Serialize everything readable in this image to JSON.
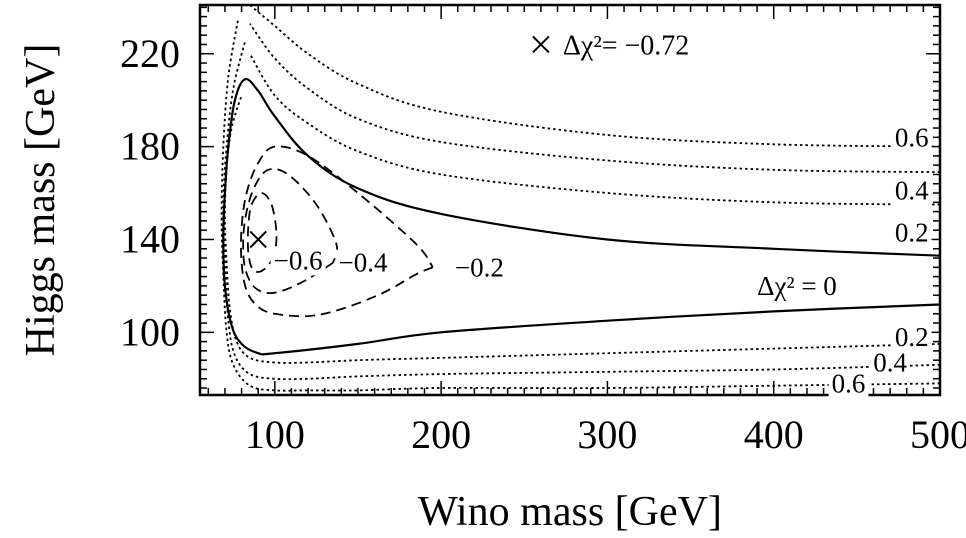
{
  "chart_data": {
    "type": "line",
    "xlabel": "Wino mass [GeV]",
    "ylabel": "Higgs mass [GeV]",
    "xlim": [
      55,
      500
    ],
    "ylim": [
      73,
      241
    ],
    "x_ticks": [
      100,
      200,
      300,
      400,
      500
    ],
    "y_ticks": [
      100,
      140,
      180,
      220
    ],
    "x_tick_labels": [
      "100",
      "200",
      "300",
      "400",
      "500"
    ],
    "y_tick_labels": [
      "100",
      "140",
      "180",
      "220"
    ],
    "colors": {
      "line": "#000000",
      "background": "#ffffff"
    },
    "contours": [
      {
        "label": "0.6",
        "style": "dotted",
        "points": [
          [
            500,
            180
          ],
          [
            400,
            181
          ],
          [
            300,
            185
          ],
          [
            200,
            195
          ],
          [
            150,
            207
          ],
          [
            120,
            220
          ],
          [
            100,
            232
          ],
          [
            85,
            241
          ]
        ]
      },
      {
        "label": "0.4",
        "style": "dotted",
        "points": [
          [
            500,
            169
          ],
          [
            400,
            170
          ],
          [
            300,
            174
          ],
          [
            200,
            182
          ],
          [
            150,
            192
          ],
          [
            120,
            205
          ],
          [
            100,
            218
          ],
          [
            85,
            233
          ]
        ]
      },
      {
        "label": "0.2",
        "style": "dotted",
        "points": [
          [
            500,
            155
          ],
          [
            400,
            156
          ],
          [
            300,
            160
          ],
          [
            200,
            168
          ],
          [
            150,
            178
          ],
          [
            120,
            190
          ],
          [
            100,
            202
          ],
          [
            85,
            220
          ]
        ]
      },
      {
        "label": "0",
        "style": "solid",
        "points": [
          [
            500,
            133
          ],
          [
            400,
            136
          ],
          [
            300,
            140
          ],
          [
            200,
            151
          ],
          [
            150,
            162
          ],
          [
            120,
            176
          ],
          [
            100,
            193
          ],
          [
            90,
            204
          ],
          [
            82,
            209
          ],
          [
            76,
            200
          ],
          [
            72,
            180
          ],
          [
            70,
            160
          ],
          [
            69,
            140
          ],
          [
            70,
            120
          ],
          [
            74,
            103
          ],
          [
            80,
            95
          ],
          [
            90,
            91
          ],
          [
            100,
            91
          ],
          [
            150,
            95
          ],
          [
            200,
            100
          ],
          [
            300,
            105
          ],
          [
            400,
            109
          ],
          [
            500,
            112
          ]
        ]
      },
      {
        "label": "0.2",
        "style": "dotted",
        "points": [
          [
            500,
            95
          ],
          [
            400,
            93
          ],
          [
            300,
            91
          ],
          [
            200,
            89
          ],
          [
            150,
            88
          ],
          [
            120,
            87
          ],
          [
            100,
            87
          ],
          [
            85,
            89
          ],
          [
            77,
            96
          ],
          [
            73,
            110
          ],
          [
            71,
            130
          ],
          [
            70,
            150
          ],
          [
            71,
            170
          ],
          [
            74,
            188
          ],
          [
            80,
            202
          ]
        ]
      },
      {
        "label": "0.4",
        "style": "dotted",
        "points": [
          [
            500,
            86
          ],
          [
            400,
            84
          ],
          [
            300,
            83
          ],
          [
            200,
            82
          ],
          [
            150,
            81
          ],
          [
            120,
            80
          ],
          [
            100,
            80
          ],
          [
            85,
            82
          ],
          [
            76,
            90
          ],
          [
            72,
            105
          ],
          [
            70,
            130
          ],
          [
            69,
            155
          ],
          [
            71,
            180
          ],
          [
            75,
            205
          ],
          [
            82,
            225
          ]
        ]
      },
      {
        "label": "0.6",
        "style": "dotted",
        "points": [
          [
            500,
            78
          ],
          [
            400,
            77
          ],
          [
            300,
            76
          ],
          [
            200,
            76
          ],
          [
            150,
            75
          ],
          [
            120,
            75
          ],
          [
            100,
            75
          ],
          [
            85,
            77
          ],
          [
            75,
            86
          ],
          [
            71,
            100
          ],
          [
            69,
            125
          ],
          [
            68,
            150
          ],
          [
            69,
            180
          ],
          [
            72,
            210
          ],
          [
            78,
            235
          ]
        ]
      },
      {
        "label": "−0.2",
        "style": "dashed",
        "points": [
          [
            195,
            128
          ],
          [
            185,
            125
          ],
          [
            165,
            117
          ],
          [
            140,
            110
          ],
          [
            120,
            107
          ],
          [
            100,
            108
          ],
          [
            90,
            111
          ],
          [
            83,
            118
          ],
          [
            80,
            130
          ],
          [
            80,
            145
          ],
          [
            83,
            160
          ],
          [
            90,
            173
          ],
          [
            100,
            180
          ],
          [
            120,
            176
          ],
          [
            150,
            160
          ],
          [
            185,
            138
          ],
          [
            195,
            128
          ]
        ]
      },
      {
        "label": "−0.4",
        "style": "dashed",
        "points": [
          [
            135,
            130
          ],
          [
            120,
            123
          ],
          [
            105,
            118
          ],
          [
            95,
            117
          ],
          [
            87,
            120
          ],
          [
            82,
            128
          ],
          [
            81,
            140
          ],
          [
            83,
            152
          ],
          [
            88,
            163
          ],
          [
            96,
            170
          ],
          [
            108,
            168
          ],
          [
            125,
            155
          ],
          [
            137,
            138
          ],
          [
            135,
            130
          ]
        ]
      },
      {
        "label": "−0.6",
        "style": "dashed",
        "points": [
          [
            100,
            133
          ],
          [
            95,
            128
          ],
          [
            90,
            126
          ],
          [
            86,
            128
          ],
          [
            84,
            135
          ],
          [
            84,
            145
          ],
          [
            86,
            155
          ],
          [
            92,
            160
          ],
          [
            98,
            155
          ],
          [
            101,
            143
          ],
          [
            100,
            133
          ]
        ]
      }
    ],
    "contour_labels": [
      {
        "text": "0.6",
        "x": 483,
        "y": 184
      },
      {
        "text": "0.4",
        "x": 483,
        "y": 161
      },
      {
        "text": "0.2",
        "x": 483,
        "y": 143
      },
      {
        "text": "Δχ² = 0",
        "x": 414,
        "y": 120
      },
      {
        "text": "0.2",
        "x": 483,
        "y": 98
      },
      {
        "text": "0.4",
        "x": 470,
        "y": 87
      },
      {
        "text": "0.6",
        "x": 445,
        "y": 78
      },
      {
        "text": "−0.2",
        "x": 223,
        "y": 128
      },
      {
        "text": "−0.4",
        "x": 153,
        "y": 130
      },
      {
        "text": "−0.6",
        "x": 114,
        "y": 131
      }
    ],
    "minima": [
      {
        "x": 90,
        "y": 140,
        "label": ""
      },
      {
        "x": 260,
        "y": 224,
        "label": "Δχ²= −0.72"
      }
    ]
  }
}
